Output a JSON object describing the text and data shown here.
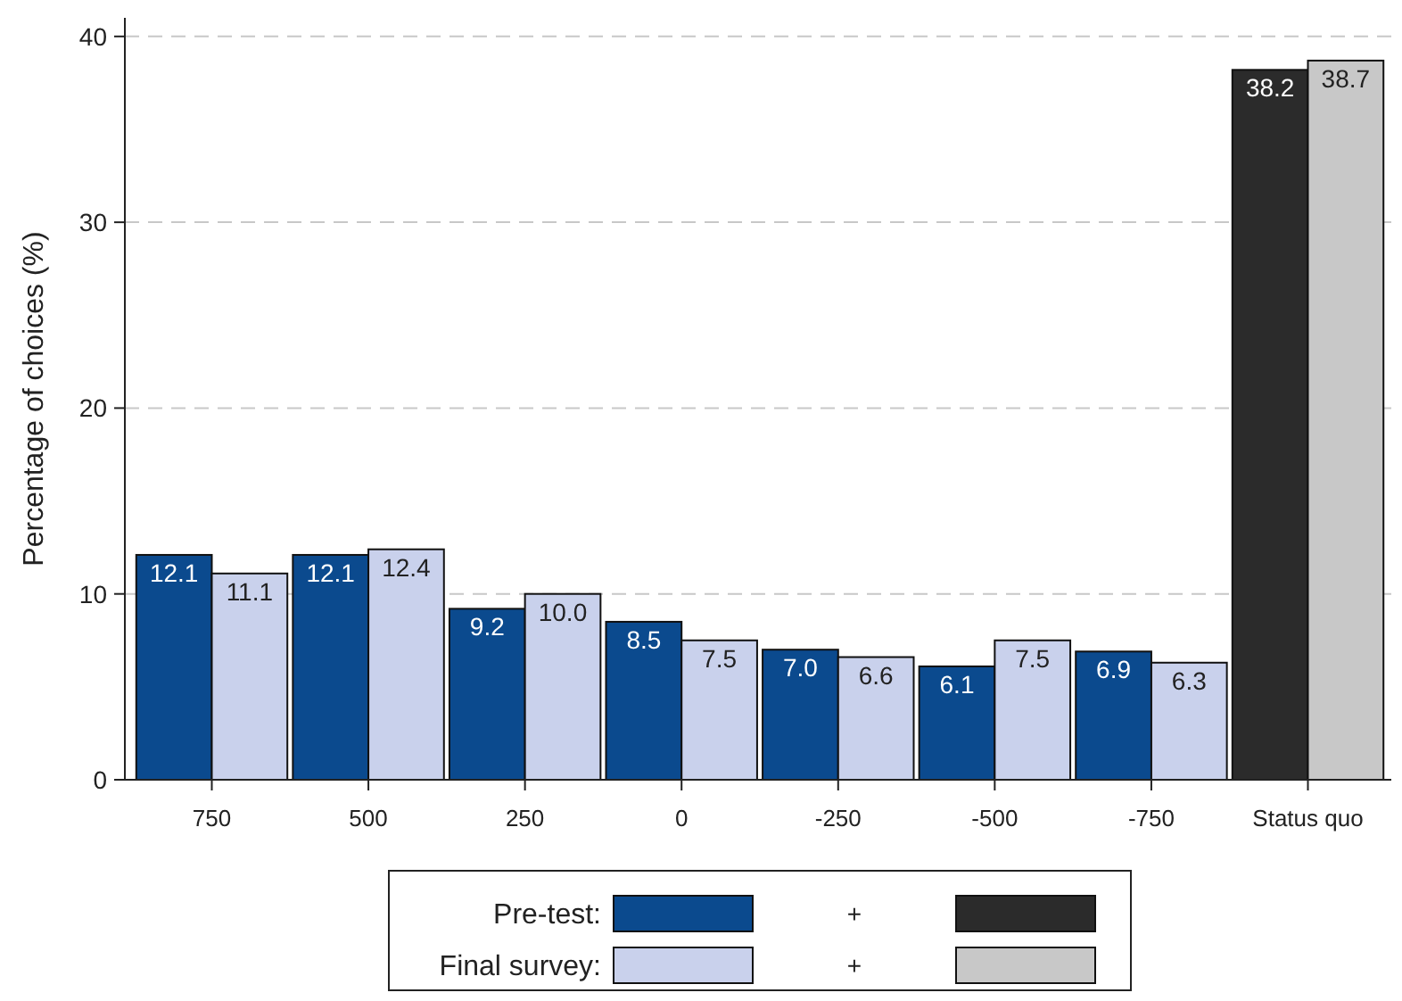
{
  "chart_data": {
    "type": "bar",
    "ylabel": "Percentage of choices (%)",
    "categories": [
      "750",
      "500",
      "250",
      "0",
      "-250",
      "-500",
      "-750",
      "Status quo"
    ],
    "series": [
      {
        "name": "Pre-test:",
        "color": "#0b4a8e",
        "colors": [
          "#0b4a8e",
          "#0b4a8e",
          "#0b4a8e",
          "#0b4a8e",
          "#0b4a8e",
          "#0b4a8e",
          "#0b4a8e",
          "#2b2b2b"
        ],
        "values": [
          12.1,
          12.1,
          9.2,
          8.5,
          7.0,
          6.1,
          6.9,
          38.2
        ],
        "value_labels": [
          "12.1",
          "12.1",
          "9.2",
          "8.5",
          "7.0",
          "6.1",
          "6.9",
          "38.2"
        ]
      },
      {
        "name": "Final survey:",
        "color": "#c9d1ec",
        "colors": [
          "#c9d1ec",
          "#c9d1ec",
          "#c9d1ec",
          "#c9d1ec",
          "#c9d1ec",
          "#c9d1ec",
          "#c9d1ec",
          "#c8c8c8"
        ],
        "values": [
          11.1,
          12.4,
          10.0,
          7.5,
          6.6,
          7.5,
          6.3,
          38.7
        ],
        "value_labels": [
          "11.1",
          "12.4",
          "10.0",
          "7.5",
          "6.6",
          "7.5",
          "6.3",
          "38.7"
        ]
      }
    ],
    "ylim": [
      0,
      41
    ],
    "yticks": [
      0,
      10,
      20,
      30,
      40
    ],
    "grid": "y",
    "legend": "bottom",
    "annotations": [
      "+",
      "+"
    ]
  }
}
